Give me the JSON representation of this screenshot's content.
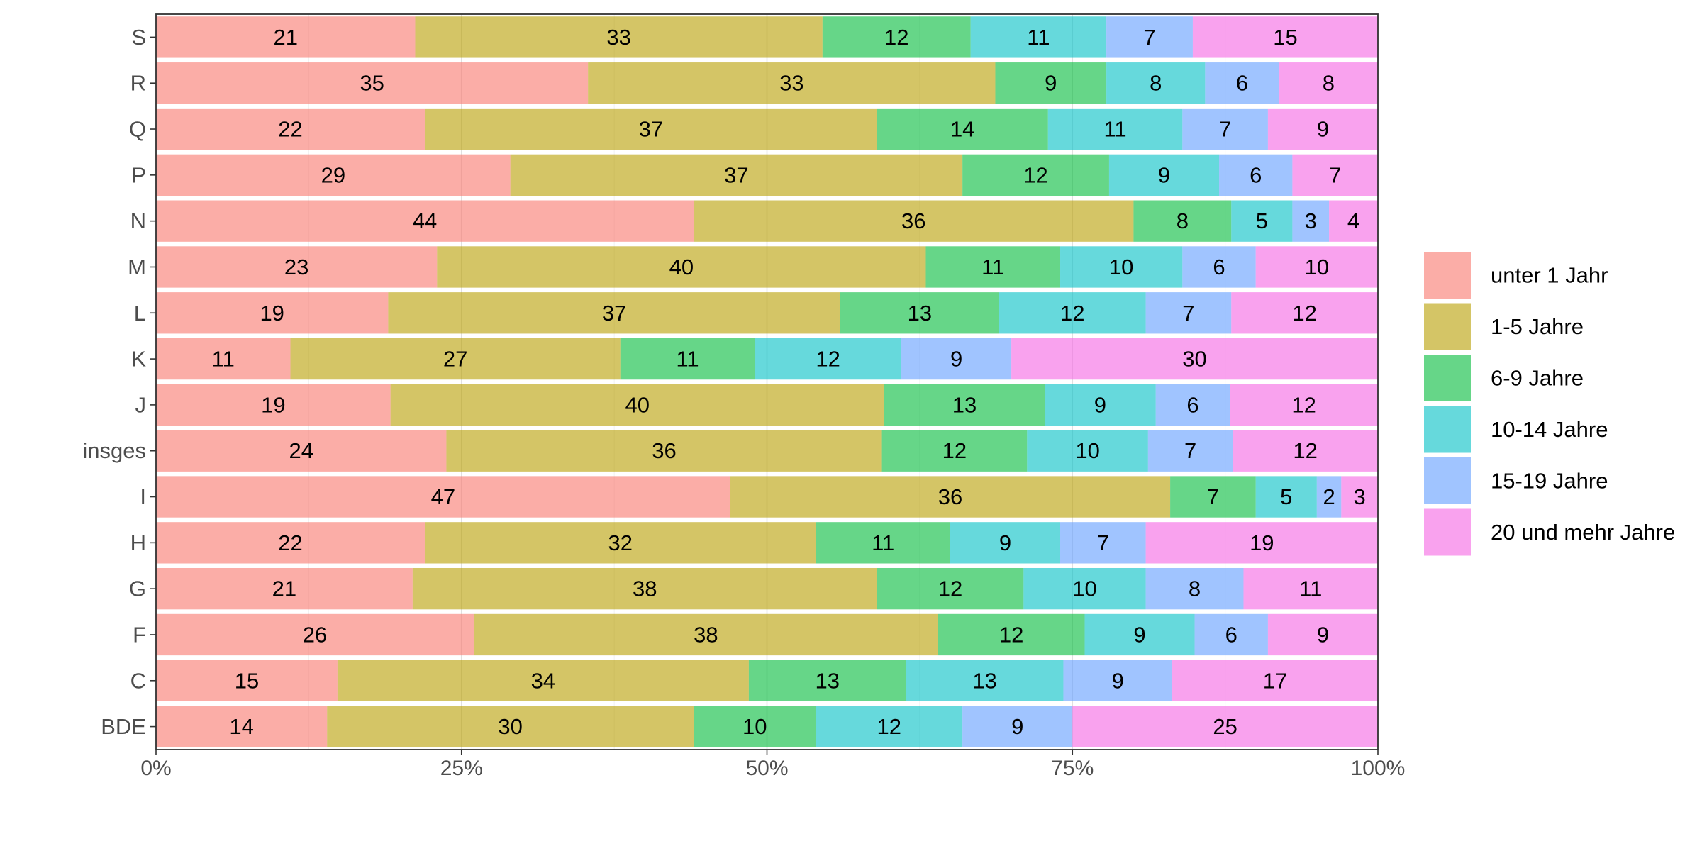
{
  "chart_data": {
    "type": "bar",
    "orientation": "horizontal",
    "stacked": "percent",
    "categories": [
      "S",
      "R",
      "Q",
      "P",
      "N",
      "M",
      "L",
      "K",
      "J",
      "insges",
      "I",
      "H",
      "G",
      "F",
      "C",
      "BDE"
    ],
    "series": [
      {
        "name": "unter 1 Jahr",
        "color": "#F8766D",
        "values": [
          21,
          35,
          22,
          29,
          44,
          23,
          19,
          11,
          19,
          24,
          47,
          22,
          21,
          26,
          15,
          14
        ]
      },
      {
        "name": "1-5 Jahre",
        "color": "#B79F00",
        "values": [
          33,
          33,
          37,
          37,
          36,
          40,
          37,
          27,
          40,
          36,
          36,
          32,
          38,
          38,
          34,
          30
        ]
      },
      {
        "name": "6-9 Jahre",
        "color": "#00BA38",
        "values": [
          12,
          9,
          14,
          12,
          8,
          11,
          13,
          11,
          13,
          12,
          7,
          11,
          12,
          12,
          13,
          10
        ]
      },
      {
        "name": "10-14 Jahre",
        "color": "#00BFC4",
        "values": [
          11,
          8,
          11,
          9,
          5,
          10,
          12,
          12,
          9,
          10,
          5,
          9,
          10,
          9,
          13,
          12
        ]
      },
      {
        "name": "15-19 Jahre",
        "color": "#619CFF",
        "values": [
          7,
          6,
          7,
          6,
          3,
          6,
          7,
          9,
          6,
          7,
          2,
          7,
          8,
          6,
          9,
          9
        ]
      },
      {
        "name": "20 und mehr Jahre",
        "color": "#F564E3",
        "values": [
          15,
          8,
          9,
          7,
          4,
          10,
          12,
          30,
          12,
          12,
          3,
          19,
          11,
          9,
          17,
          25
        ]
      }
    ],
    "x_ticks": [
      "0%",
      "25%",
      "50%",
      "75%",
      "100%"
    ],
    "xlim": [
      0,
      100
    ],
    "grid": true,
    "legend": "right",
    "title": "",
    "xlabel": "",
    "ylabel": ""
  }
}
